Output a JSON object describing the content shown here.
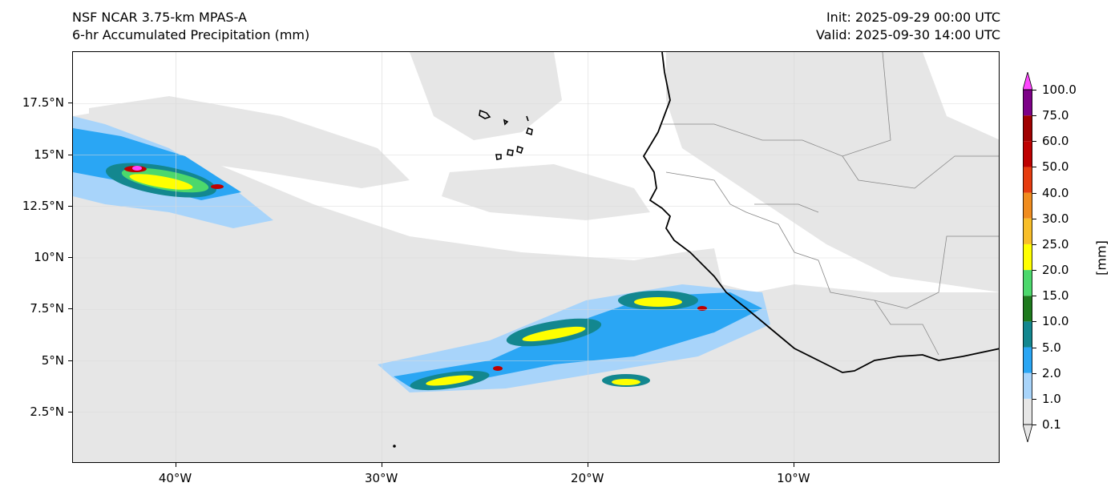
{
  "header": {
    "model": "NSF NCAR 3.75-km MPAS-A",
    "field": "6-hr Accumulated Precipitation (mm)",
    "init": "Init: 2025-09-29 00:00 UTC",
    "valid": "Valid: 2025-09-30 14:00 UTC"
  },
  "map": {
    "lon_range": [
      -45,
      0
    ],
    "lat_range": [
      0,
      20
    ],
    "lon_ticks": [
      {
        "value": -40,
        "label": "40°W"
      },
      {
        "value": -30,
        "label": "30°W"
      },
      {
        "value": -20,
        "label": "20°W"
      },
      {
        "value": -10,
        "label": "10°W"
      }
    ],
    "lat_ticks": [
      {
        "value": 2.5,
        "label": "2.5°N"
      },
      {
        "value": 5,
        "label": "5°N"
      },
      {
        "value": 7.5,
        "label": "7.5°N"
      },
      {
        "value": 10,
        "label": "10°N"
      },
      {
        "value": 12.5,
        "label": "12.5°N"
      },
      {
        "value": 15,
        "label": "15°N"
      },
      {
        "value": 17.5,
        "label": "17.5°N"
      }
    ],
    "gridlines": true,
    "coastline_color": "#000000",
    "border_color": "#888888"
  },
  "colorbar": {
    "units": "[mm]",
    "levels": [
      "0.1",
      "1.0",
      "2.0",
      "5.0",
      "10.0",
      "15.0",
      "20.0",
      "25.0",
      "30.0",
      "40.0",
      "50.0",
      "60.0",
      "75.0",
      "100.0"
    ],
    "colors": [
      "#e6e6e6",
      "#a8d4fa",
      "#2aa6f4",
      "#13878f",
      "#1e7a1e",
      "#4cd86c",
      "#ffff00",
      "#f8be28",
      "#f08c1e",
      "#e63c0f",
      "#be0000",
      "#a00000",
      "#7d0087",
      "#ff46ff"
    ],
    "extend": "both"
  }
}
